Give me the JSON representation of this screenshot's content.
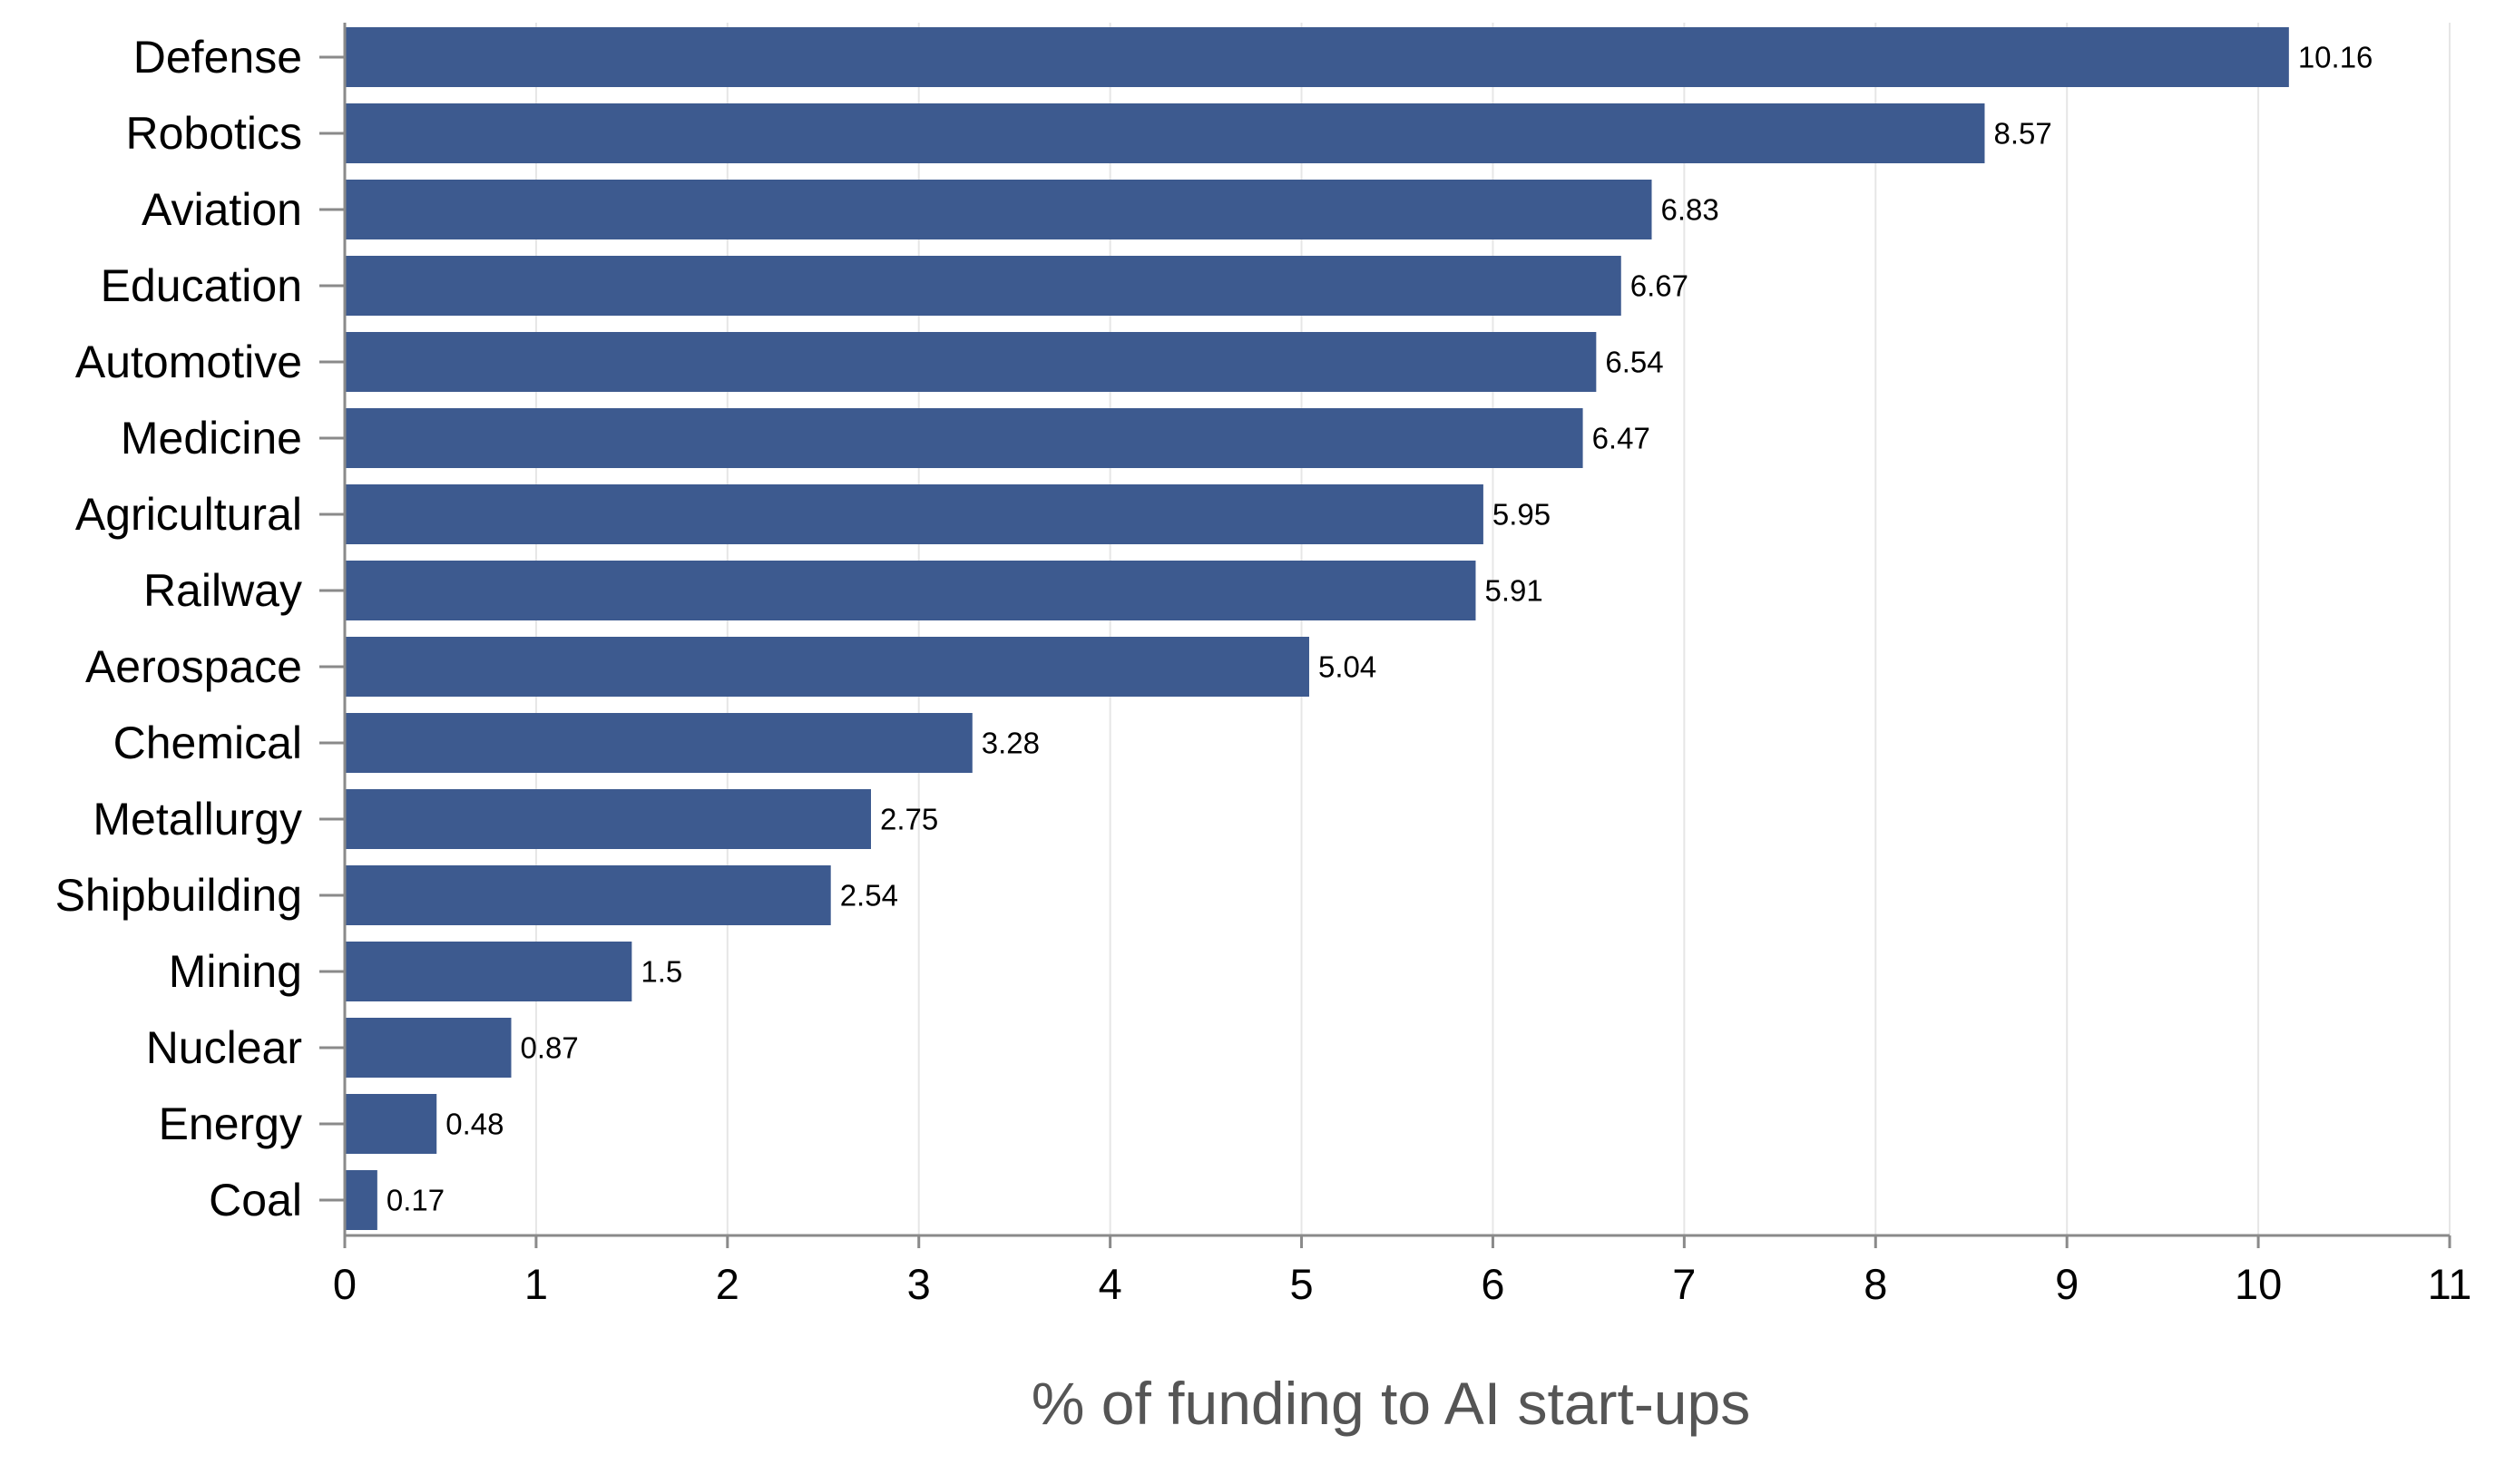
{
  "chart_data": {
    "type": "bar",
    "orientation": "horizontal",
    "categories": [
      "Defense",
      "Robotics",
      "Aviation",
      "Education",
      "Automotive",
      "Medicine",
      "Agricultural",
      "Railway",
      "Aerospace",
      "Chemical",
      "Metallurgy",
      "Shipbuilding",
      "Mining",
      "Nuclear",
      "Energy",
      "Coal"
    ],
    "values": [
      10.16,
      8.57,
      6.83,
      6.67,
      6.54,
      6.47,
      5.95,
      5.91,
      5.04,
      3.28,
      2.75,
      2.54,
      1.5,
      0.87,
      0.48,
      0.17
    ],
    "data_labels": [
      "10.16",
      "8.57",
      "6.83",
      "6.67",
      "6.54",
      "6.47",
      "5.95",
      "5.91",
      "5.04",
      "3.28",
      "2.75",
      "2.54",
      "1.5",
      "0.87",
      "0.48",
      "0.17"
    ],
    "xlabel": "% of funding to AI start-ups",
    "ylabel": "",
    "title": "",
    "xlim": [
      0,
      11
    ],
    "x_ticks": [
      "0",
      "1",
      "2",
      "3",
      "4",
      "5",
      "6",
      "7",
      "8",
      "9",
      "10",
      "11"
    ],
    "grid": "vertical",
    "bar_color": "#3d5a8f"
  }
}
